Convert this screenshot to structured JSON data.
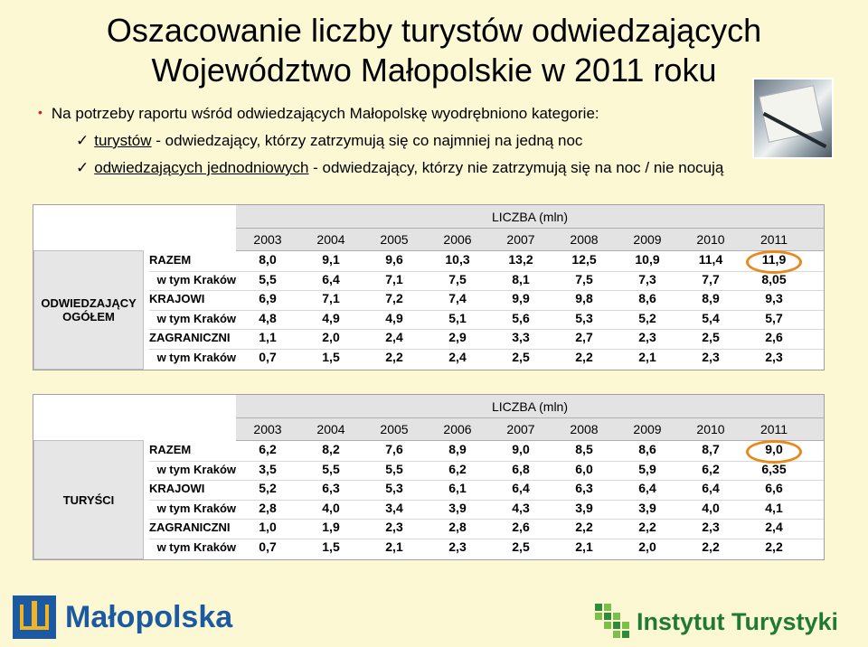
{
  "title_line1": "Oszacowanie liczby turystów odwiedzających",
  "title_line2": "Województwo Małopolskie w 2011 roku",
  "intro": "Na potrzeby raportu wśród odwiedzających Małopolskę wyodrębniono kategorie:",
  "categories": [
    {
      "term": "turystów",
      "desc": " - odwiedzający, którzy zatrzymują się co najmniej na jedną noc"
    },
    {
      "term": "odwiedzających jednodniowych",
      "desc": " - odwiedzający, którzy nie zatrzymują się na noc / nie nocują"
    }
  ],
  "years": [
    "2003",
    "2004",
    "2005",
    "2006",
    "2007",
    "2008",
    "2009",
    "2010",
    "2011"
  ],
  "tables": [
    {
      "group_label": "ODWIEDZAJĄCY OGÓŁEM",
      "unit_label": "LICZBA (mln)",
      "rows": [
        {
          "label": "RAZEM",
          "values": [
            "8,0",
            "9,1",
            "9,6",
            "10,3",
            "13,2",
            "12,5",
            "10,9",
            "11,4",
            "11,9"
          ]
        },
        {
          "label": "w tym Kraków",
          "values": [
            "5,5",
            "6,4",
            "7,1",
            "7,5",
            "8,1",
            "7,5",
            "7,3",
            "7,7",
            "8,05"
          ]
        },
        {
          "label": "KRAJOWI",
          "values": [
            "6,9",
            "7,1",
            "7,2",
            "7,4",
            "9,9",
            "9,8",
            "8,6",
            "8,9",
            "9,3"
          ]
        },
        {
          "label": "w tym Kraków",
          "values": [
            "4,8",
            "4,9",
            "4,9",
            "5,1",
            "5,6",
            "5,3",
            "5,2",
            "5,4",
            "5,7"
          ]
        },
        {
          "label": "ZAGRANICZNI",
          "values": [
            "1,1",
            "2,0",
            "2,4",
            "2,9",
            "3,3",
            "2,7",
            "2,3",
            "2,5",
            "2,6"
          ]
        },
        {
          "label": "w tym Kraków",
          "values": [
            "0,7",
            "1,5",
            "2,2",
            "2,4",
            "2,5",
            "2,2",
            "2,1",
            "2,3",
            "2,3"
          ]
        }
      ]
    },
    {
      "group_label": "TURYŚCI",
      "unit_label": "LICZBA (mln)",
      "rows": [
        {
          "label": "RAZEM",
          "values": [
            "6,2",
            "8,2",
            "7,6",
            "8,9",
            "9,0",
            "8,5",
            "8,6",
            "8,7",
            "9,0"
          ]
        },
        {
          "label": "w tym Kraków",
          "values": [
            "3,5",
            "5,5",
            "5,5",
            "6,2",
            "6,8",
            "6,0",
            "5,9",
            "6,2",
            "6,35"
          ]
        },
        {
          "label": "KRAJOWI",
          "values": [
            "5,2",
            "6,3",
            "5,3",
            "6,1",
            "6,4",
            "6,3",
            "6,4",
            "6,4",
            "6,6"
          ]
        },
        {
          "label": "w tym Kraków",
          "values": [
            "2,8",
            "4,0",
            "3,4",
            "3,9",
            "4,3",
            "3,9",
            "3,9",
            "4,0",
            "4,1"
          ]
        },
        {
          "label": "ZAGRANICZNI",
          "values": [
            "1,0",
            "1,9",
            "2,3",
            "2,8",
            "2,6",
            "2,2",
            "2,2",
            "2,3",
            "2,4"
          ]
        },
        {
          "label": "w tym Kraków",
          "values": [
            "0,7",
            "1,5",
            "2,1",
            "2,3",
            "2,5",
            "2,1",
            "2,0",
            "2,2",
            "2,2"
          ]
        }
      ]
    }
  ],
  "highlight_color": "#e8891e",
  "logos": {
    "left": "Małopolska",
    "right": "Instytut Turystyki"
  }
}
